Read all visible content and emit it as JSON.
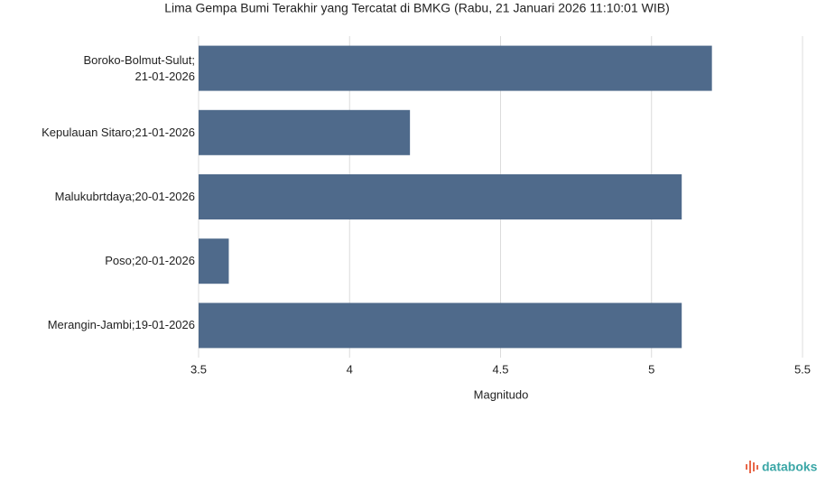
{
  "chart_data": {
    "type": "bar",
    "orientation": "horizontal",
    "title": "Lima Gempa Bumi Terakhir yang Tercatat di BMKG (Rabu, 21 Januari 2026 11:10:01 WIB)",
    "categories": [
      "Boroko-Bolmut-Sulut;\n21-01-2026",
      "Kepulauan Sitaro;21-01-2026",
      "Malukubrtdaya;20-01-2026",
      "Poso;20-01-2026",
      "Merangin-Jambi;19-01-2026"
    ],
    "values": [
      5.2,
      4.2,
      5.1,
      3.6,
      5.1
    ],
    "color": "#4f6a8b",
    "xlabel": "Magnitudo",
    "xlim": [
      3.5,
      5.5
    ],
    "xticks": [
      3.5,
      4,
      4.5,
      5,
      5.5
    ],
    "grid": true,
    "brand": "databoks"
  }
}
